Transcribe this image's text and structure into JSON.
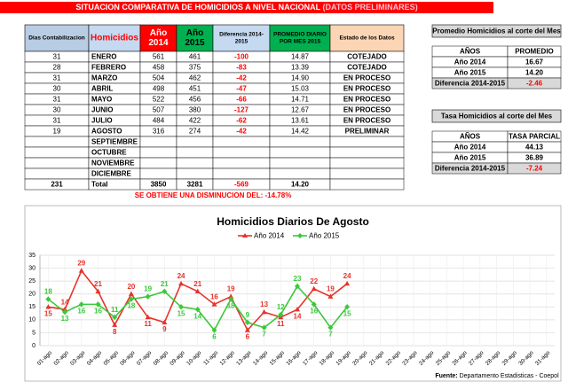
{
  "header": {
    "title": "SITUACION COMPARATIVA DE HOMICIDIOS A NIVEL NACIONAL",
    "note": "(DATOS PRELIMINARES)"
  },
  "main_table": {
    "headers": [
      [
        "Dias Contabilizacion"
      ],
      [
        "Homicidios"
      ],
      [
        "Año",
        "2014"
      ],
      [
        "Año",
        "2015"
      ],
      [
        "Diferencia 2014-",
        "2015"
      ],
      [
        "PROMEDIO DIARIO",
        "POR MES 2015"
      ],
      [
        "Estado de los Datos"
      ]
    ],
    "rows": [
      {
        "days": "31",
        "month": "ENERO",
        "y2014": "561",
        "y2015": "461",
        "diff": "-100",
        "avg": "14.87",
        "status": "COTEJADO"
      },
      {
        "days": "28",
        "month": "FEBRERO",
        "y2014": "458",
        "y2015": "375",
        "diff": "-83",
        "avg": "13.39",
        "status": "COTEJADO"
      },
      {
        "days": "31",
        "month": "MARZO",
        "y2014": "504",
        "y2015": "462",
        "diff": "-42",
        "avg": "14.90",
        "status": "EN PROCESO"
      },
      {
        "days": "30",
        "month": "ABRIL",
        "y2014": "498",
        "y2015": "451",
        "diff": "-47",
        "avg": "15.03",
        "status": "EN PROCESO"
      },
      {
        "days": "31",
        "month": "MAYO",
        "y2014": "522",
        "y2015": "456",
        "diff": "-66",
        "avg": "14.71",
        "status": "EN PROCESO"
      },
      {
        "days": "30",
        "month": "JUNIO",
        "y2014": "507",
        "y2015": "380",
        "diff": "-127",
        "avg": "12.67",
        "status": "EN PROCESO"
      },
      {
        "days": "31",
        "month": "JULIO",
        "y2014": "484",
        "y2015": "422",
        "diff": "-62",
        "avg": "13.61",
        "status": "EN PROCESO"
      },
      {
        "days": "19",
        "month": "AGOSTO",
        "y2014": "316",
        "y2015": "274",
        "diff": "-42",
        "avg": "14.42",
        "status": "PRELIMINAR"
      },
      {
        "month": "SEPTIEMBRE"
      },
      {
        "month": "OCTUBRE"
      },
      {
        "month": "NOVIEMBRE"
      },
      {
        "month": "DICIEMBRE"
      }
    ],
    "total": {
      "days": "231",
      "month": "Total",
      "y2014": "3850",
      "y2015": "3281",
      "diff": "-569",
      "avg": "14.20"
    },
    "footer": "SE OBTIENE UNA DISMINUCION DEL: -14.78%"
  },
  "side_tables": [
    {
      "title": "Promedio Homicidios al corte del Mes",
      "headers": [
        "AÑOS",
        "PROMEDIO"
      ],
      "rows": [
        [
          "Año 2014",
          "16.67"
        ],
        [
          "Año 2015",
          "14.20"
        ],
        [
          "Diferencia 2014-2015",
          "-2.46"
        ]
      ]
    },
    {
      "title": "Tasa Homicidios al corte del Mes",
      "headers": [
        "AÑOS",
        "TASA PARCIAL"
      ],
      "rows": [
        [
          "Año 2014",
          "44.13"
        ],
        [
          "Año 2015",
          "36.89"
        ],
        [
          "Diferencia 2014-2015",
          "-7.24"
        ]
      ]
    }
  ],
  "chart_data": {
    "type": "line",
    "title": "Homicidios Diarios De Agosto",
    "categories": [
      "01-ago",
      "02-ago",
      "03-ago",
      "04-ago",
      "05-ago",
      "06-ago",
      "07-ago",
      "08-ago",
      "09-ago",
      "10-ago",
      "11-ago",
      "12-ago",
      "13-ago",
      "14-ago",
      "15-ago",
      "16-ago",
      "17-ago",
      "18-ago",
      "19-ago",
      "20-ago",
      "21-ago",
      "22-ago",
      "23-ago",
      "24-ago",
      "25-ago",
      "26-ago",
      "27-ago",
      "28-ago",
      "29-ago",
      "30-ago",
      "31-ago"
    ],
    "series": [
      {
        "name": "Año 2014",
        "color": "#e8322b",
        "marker": "triangle",
        "values": [
          15,
          14,
          29,
          21,
          8,
          20,
          11,
          9,
          24,
          21,
          16,
          19,
          6,
          13,
          11,
          14,
          22,
          19,
          24,
          null,
          null,
          null,
          null,
          null,
          null,
          null,
          null,
          null,
          null,
          null,
          null
        ]
      },
      {
        "name": "Año 2015",
        "color": "#3cc83c",
        "marker": "diamond",
        "values": [
          18,
          13,
          16,
          16,
          11,
          18,
          19,
          21,
          15,
          14,
          6,
          18,
          9,
          7,
          12,
          23,
          16,
          7,
          15,
          null,
          null,
          null,
          null,
          null,
          null,
          null,
          null,
          null,
          null,
          null,
          null
        ]
      }
    ],
    "ylim": [
      0,
      35
    ],
    "yticks": [
      0,
      5,
      10,
      15,
      20,
      25,
      30,
      35
    ],
    "grid": true,
    "legend": "top",
    "source_label": "Fuente:",
    "source": "Departamento Estadisticas - Coepol"
  }
}
